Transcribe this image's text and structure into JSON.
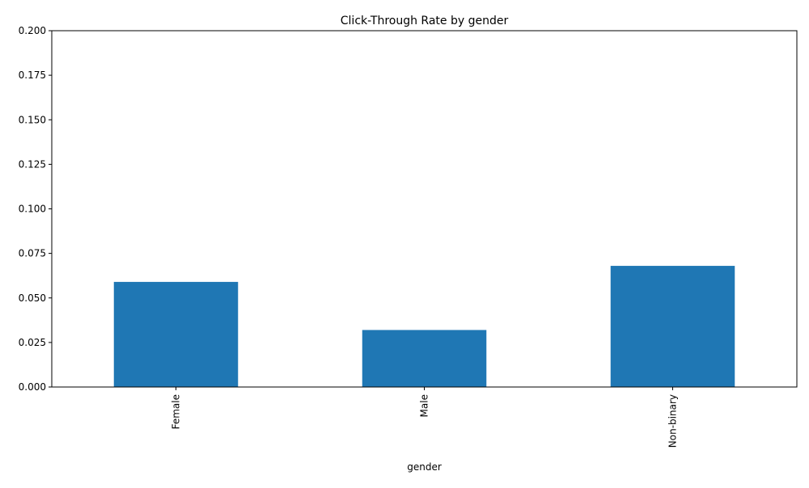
{
  "chart_data": {
    "type": "bar",
    "title": "Click-Through Rate by gender",
    "xlabel": "gender",
    "ylabel": "",
    "categories": [
      "Female",
      "Male",
      "Non-binary"
    ],
    "values": [
      0.059,
      0.032,
      0.068
    ],
    "ylim": [
      0,
      0.2
    ],
    "yticks": [
      "0.000",
      "0.025",
      "0.050",
      "0.075",
      "0.100",
      "0.125",
      "0.150",
      "0.175",
      "0.200"
    ],
    "bar_color": "#1f77b4",
    "grid": false,
    "legend": "none"
  }
}
